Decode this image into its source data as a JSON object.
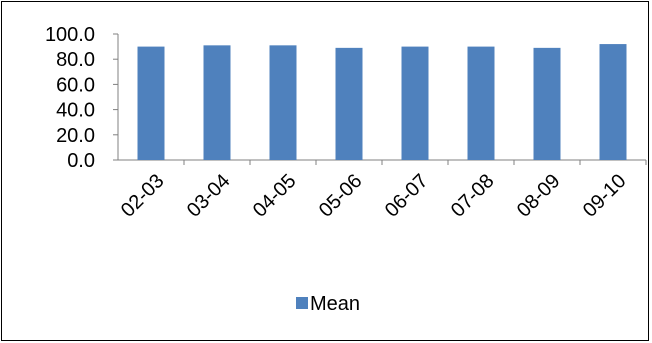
{
  "chart_data": {
    "type": "bar",
    "categories": [
      "02-03",
      "03-04",
      "04-05",
      "05-06",
      "06-07",
      "07-08",
      "08-09",
      "09-10"
    ],
    "series": [
      {
        "name": "Mean",
        "values": [
          90.0,
          91.0,
          91.0,
          89.0,
          90.0,
          90.0,
          89.0,
          92.0
        ]
      }
    ],
    "ylim": [
      0,
      100
    ],
    "ytick_labels": [
      "0.0",
      "20.0",
      "40.0",
      "60.0",
      "80.0",
      "100.0"
    ],
    "grid": false,
    "legend": "bottom",
    "colors": {
      "bar": "#4f81bd",
      "axis": "#808080",
      "text": "#000000"
    }
  }
}
